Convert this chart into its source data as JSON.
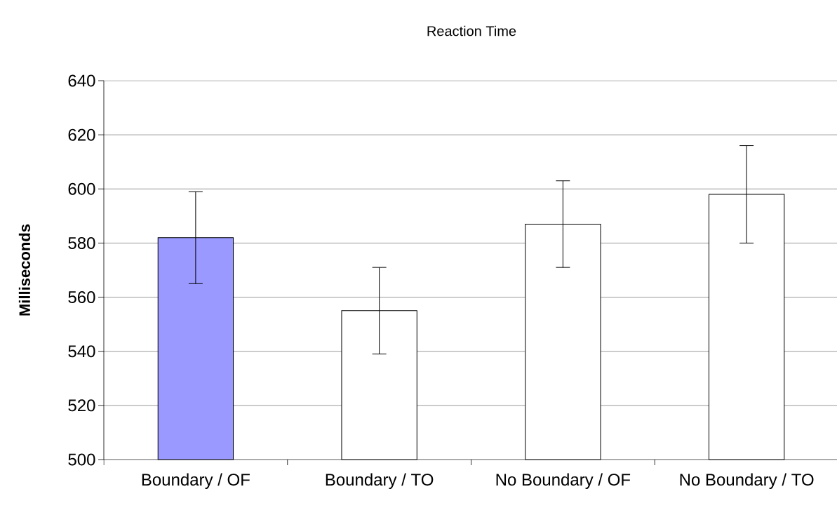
{
  "chart_data": {
    "type": "bar",
    "title": "Reaction Time",
    "ylabel": "Milliseconds",
    "categories": [
      "Boundary / OF",
      "Boundary / TO",
      "No Boundary / OF",
      "No Boundary / TO"
    ],
    "values": [
      582,
      555,
      587,
      598
    ],
    "errors": [
      17,
      16,
      16,
      18
    ],
    "colors": [
      "#9999ff",
      "#ffffff",
      "#ffffff",
      "#ffffff"
    ],
    "ylim": [
      500,
      640
    ],
    "yticks": [
      500,
      520,
      540,
      560,
      580,
      600,
      620,
      640
    ],
    "grid": "y"
  }
}
